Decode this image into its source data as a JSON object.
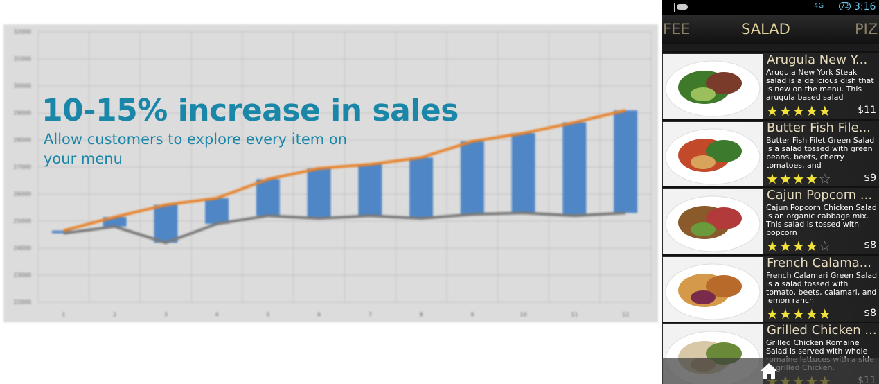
{
  "chart_data": {
    "type": "line",
    "categories": [
      "1",
      "2",
      "3",
      "4",
      "5",
      "6",
      "7",
      "8",
      "9",
      "10",
      "11",
      "12"
    ],
    "series": [
      {
        "color": "#e8822a",
        "values": [
          24650,
          25150,
          25600,
          25850,
          26550,
          26950,
          27100,
          27350,
          27950,
          28250,
          28650,
          29100
        ]
      },
      {
        "color": "#7a7a7a",
        "values": [
          24550,
          24800,
          24200,
          24900,
          25200,
          25100,
          25200,
          25100,
          25250,
          25300,
          25200,
          25300
        ]
      }
    ],
    "bar_color": "#4f86c6",
    "ylim": [
      22000,
      32000
    ],
    "yticks": [
      22000,
      23000,
      24000,
      25000,
      26000,
      27000,
      28000,
      29000,
      30000,
      31000,
      32000
    ],
    "grid": true
  },
  "overlay": {
    "headline": "10-15% increase in sales",
    "subline": "Allow customers to explore every item on your menu"
  },
  "status_bar": {
    "network": "4G",
    "battery": "72",
    "time": "3:16"
  },
  "tabs": [
    "FEE",
    "SALAD",
    "PIZ"
  ],
  "items": [
    {
      "title": "Arugula New Y...",
      "description": "Arugula New York Steak salad is a delicious dish that is new on the menu. This arugula based salad",
      "rating": 5,
      "price": "$11"
    },
    {
      "title": "Butter Fish File...",
      "description": "Butter Fish Filet Green Salad is a salad tossed with green beans, beets, cherry tomatoes, and",
      "rating": 4,
      "price": "$9"
    },
    {
      "title": "Cajun Popcorn ...",
      "description": "Cajun Popcorn Chicken Salad is an organic cabbage mix. This salad is tossed with popcorn",
      "rating": 4,
      "price": "$8"
    },
    {
      "title": "French Calama...",
      "description": "French Calamari Green Salad is a salad tossed with tomato, beets, calamari, and lemon ranch",
      "rating": 5,
      "price": "$8"
    },
    {
      "title": "Grilled Chicken ...",
      "description": "Grilled Chicken Romaine Salad is served with whole romaine lettuces with a side of grilled Chicken.",
      "rating": 5,
      "price": "$11"
    }
  ]
}
